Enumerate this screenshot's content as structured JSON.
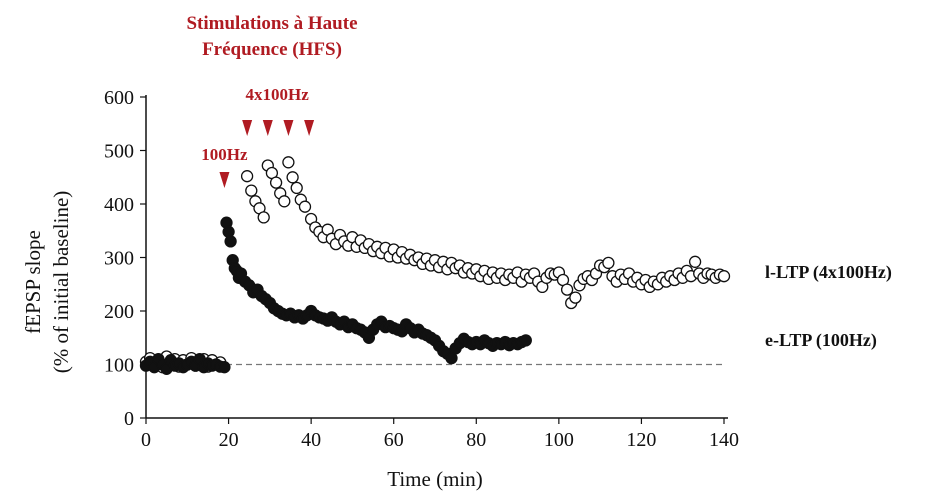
{
  "chart_data": {
    "type": "scatter",
    "title_line1": "Stimulations à Haute",
    "title_line2": "Fréquence (HFS)",
    "xlabel": "Time (min)",
    "ylabel_line1": "fEPSP slope",
    "ylabel_line2": "(% of initial baseline)",
    "xlim": [
      0,
      140
    ],
    "ylim": [
      0,
      600
    ],
    "xticks": [
      "0",
      "20",
      "40",
      "60",
      "80",
      "100",
      "120",
      "140"
    ],
    "yticks": [
      "0",
      "100",
      "200",
      "300",
      "400",
      "500",
      "600"
    ],
    "baseline": 100,
    "stimulations": [
      {
        "label": "100Hz",
        "times": [
          19
        ]
      },
      {
        "label": "4x100Hz",
        "times": [
          24.5,
          29.5,
          34.5,
          39.5
        ]
      }
    ],
    "series": [
      {
        "name": "l-LTP (4x100Hz)",
        "marker": "open-circle",
        "points": [
          [
            0,
            105
          ],
          [
            1,
            112
          ],
          [
            2,
            98
          ],
          [
            3,
            108
          ],
          [
            4,
            95
          ],
          [
            5,
            115
          ],
          [
            6,
            102
          ],
          [
            7,
            110
          ],
          [
            8,
            96
          ],
          [
            9,
            108
          ],
          [
            10,
            100
          ],
          [
            11,
            112
          ],
          [
            12,
            98
          ],
          [
            13,
            105
          ],
          [
            14,
            110
          ],
          [
            15,
            96
          ],
          [
            16,
            108
          ],
          [
            17,
            100
          ],
          [
            18,
            104
          ],
          [
            24.5,
            452
          ],
          [
            25.5,
            425
          ],
          [
            26.5,
            405
          ],
          [
            27.5,
            392
          ],
          [
            28.5,
            375
          ],
          [
            29.5,
            472
          ],
          [
            30.5,
            458
          ],
          [
            31.5,
            440
          ],
          [
            32.5,
            420
          ],
          [
            33.5,
            405
          ],
          [
            34.5,
            478
          ],
          [
            35.5,
            450
          ],
          [
            36.5,
            430
          ],
          [
            37.5,
            408
          ],
          [
            38.5,
            395
          ],
          [
            40,
            372
          ],
          [
            41,
            356
          ],
          [
            42,
            348
          ],
          [
            43,
            338
          ],
          [
            44,
            352
          ],
          [
            45,
            335
          ],
          [
            46,
            325
          ],
          [
            47,
            342
          ],
          [
            48,
            330
          ],
          [
            49,
            322
          ],
          [
            50,
            338
          ],
          [
            51,
            320
          ],
          [
            52,
            332
          ],
          [
            53,
            318
          ],
          [
            54,
            325
          ],
          [
            55,
            312
          ],
          [
            56,
            320
          ],
          [
            57,
            308
          ],
          [
            58,
            318
          ],
          [
            59,
            302
          ],
          [
            60,
            315
          ],
          [
            61,
            300
          ],
          [
            62,
            310
          ],
          [
            63,
            298
          ],
          [
            64,
            305
          ],
          [
            65,
            295
          ],
          [
            66,
            300
          ],
          [
            67,
            288
          ],
          [
            68,
            298
          ],
          [
            69,
            285
          ],
          [
            70,
            295
          ],
          [
            71,
            282
          ],
          [
            72,
            292
          ],
          [
            73,
            278
          ],
          [
            74,
            290
          ],
          [
            75,
            280
          ],
          [
            76,
            285
          ],
          [
            77,
            272
          ],
          [
            78,
            280
          ],
          [
            79,
            270
          ],
          [
            80,
            278
          ],
          [
            81,
            265
          ],
          [
            82,
            275
          ],
          [
            83,
            260
          ],
          [
            84,
            272
          ],
          [
            85,
            262
          ],
          [
            86,
            270
          ],
          [
            87,
            258
          ],
          [
            88,
            268
          ],
          [
            89,
            262
          ],
          [
            90,
            272
          ],
          [
            91,
            255
          ],
          [
            92,
            268
          ],
          [
            93,
            262
          ],
          [
            94,
            270
          ],
          [
            95,
            255
          ],
          [
            96,
            245
          ],
          [
            97,
            262
          ],
          [
            98,
            270
          ],
          [
            99,
            268
          ],
          [
            100,
            272
          ],
          [
            101,
            258
          ],
          [
            102,
            240
          ],
          [
            103,
            215
          ],
          [
            104,
            225
          ],
          [
            105,
            248
          ],
          [
            106,
            260
          ],
          [
            107,
            265
          ],
          [
            108,
            258
          ],
          [
            109,
            270
          ],
          [
            110,
            285
          ],
          [
            111,
            282
          ],
          [
            112,
            290
          ],
          [
            113,
            265
          ],
          [
            114,
            255
          ],
          [
            115,
            268
          ],
          [
            116,
            260
          ],
          [
            117,
            270
          ],
          [
            118,
            255
          ],
          [
            119,
            262
          ],
          [
            120,
            250
          ],
          [
            121,
            258
          ],
          [
            122,
            245
          ],
          [
            123,
            255
          ],
          [
            124,
            250
          ],
          [
            125,
            262
          ],
          [
            126,
            255
          ],
          [
            127,
            265
          ],
          [
            128,
            258
          ],
          [
            129,
            270
          ],
          [
            130,
            262
          ],
          [
            131,
            275
          ],
          [
            132,
            265
          ],
          [
            133,
            292
          ],
          [
            134,
            270
          ],
          [
            135,
            262
          ],
          [
            136,
            270
          ],
          [
            137,
            268
          ],
          [
            138,
            262
          ],
          [
            139,
            268
          ],
          [
            140,
            265
          ]
        ]
      },
      {
        "name": "e-LTP (100Hz)",
        "marker": "filled-circle",
        "points": [
          [
            0,
            98
          ],
          [
            1,
            105
          ],
          [
            2,
            95
          ],
          [
            3,
            110
          ],
          [
            4,
            100
          ],
          [
            5,
            92
          ],
          [
            6,
            108
          ],
          [
            7,
            98
          ],
          [
            8,
            102
          ],
          [
            9,
            95
          ],
          [
            10,
            100
          ],
          [
            11,
            105
          ],
          [
            12,
            98
          ],
          [
            13,
            110
          ],
          [
            14,
            95
          ],
          [
            15,
            102
          ],
          [
            16,
            98
          ],
          [
            17,
            100
          ],
          [
            18,
            96
          ],
          [
            19,
            95
          ],
          [
            19.5,
            365
          ],
          [
            20,
            348
          ],
          [
            20.5,
            330
          ],
          [
            21,
            295
          ],
          [
            21.5,
            280
          ],
          [
            22,
            275
          ],
          [
            22.5,
            262
          ],
          [
            23,
            270
          ],
          [
            24,
            255
          ],
          [
            25,
            248
          ],
          [
            26,
            235
          ],
          [
            27,
            240
          ],
          [
            28,
            228
          ],
          [
            29,
            222
          ],
          [
            30,
            215
          ],
          [
            31,
            205
          ],
          [
            32,
            200
          ],
          [
            33,
            195
          ],
          [
            34,
            192
          ],
          [
            35,
            195
          ],
          [
            36,
            188
          ],
          [
            37,
            192
          ],
          [
            38,
            186
          ],
          [
            39,
            192
          ],
          [
            40,
            200
          ],
          [
            41,
            192
          ],
          [
            42,
            188
          ],
          [
            43,
            186
          ],
          [
            44,
            182
          ],
          [
            45,
            188
          ],
          [
            46,
            180
          ],
          [
            47,
            175
          ],
          [
            48,
            180
          ],
          [
            49,
            170
          ],
          [
            50,
            175
          ],
          [
            51,
            168
          ],
          [
            52,
            165
          ],
          [
            53,
            160
          ],
          [
            54,
            150
          ],
          [
            55,
            165
          ],
          [
            56,
            175
          ],
          [
            57,
            180
          ],
          [
            58,
            170
          ],
          [
            59,
            172
          ],
          [
            60,
            168
          ],
          [
            61,
            165
          ],
          [
            62,
            162
          ],
          [
            63,
            175
          ],
          [
            64,
            168
          ],
          [
            65,
            160
          ],
          [
            66,
            165
          ],
          [
            67,
            158
          ],
          [
            68,
            155
          ],
          [
            69,
            150
          ],
          [
            70,
            145
          ],
          [
            71,
            135
          ],
          [
            72,
            125
          ],
          [
            73,
            120
          ],
          [
            74,
            112
          ],
          [
            75,
            130
          ],
          [
            76,
            140
          ],
          [
            77,
            148
          ],
          [
            78,
            142
          ],
          [
            79,
            138
          ],
          [
            80,
            142
          ],
          [
            81,
            138
          ],
          [
            82,
            145
          ],
          [
            83,
            140
          ],
          [
            84,
            135
          ],
          [
            85,
            140
          ],
          [
            86,
            138
          ],
          [
            87,
            142
          ],
          [
            88,
            136
          ],
          [
            89,
            140
          ],
          [
            90,
            138
          ],
          [
            91,
            142
          ],
          [
            92,
            145
          ]
        ]
      }
    ]
  }
}
